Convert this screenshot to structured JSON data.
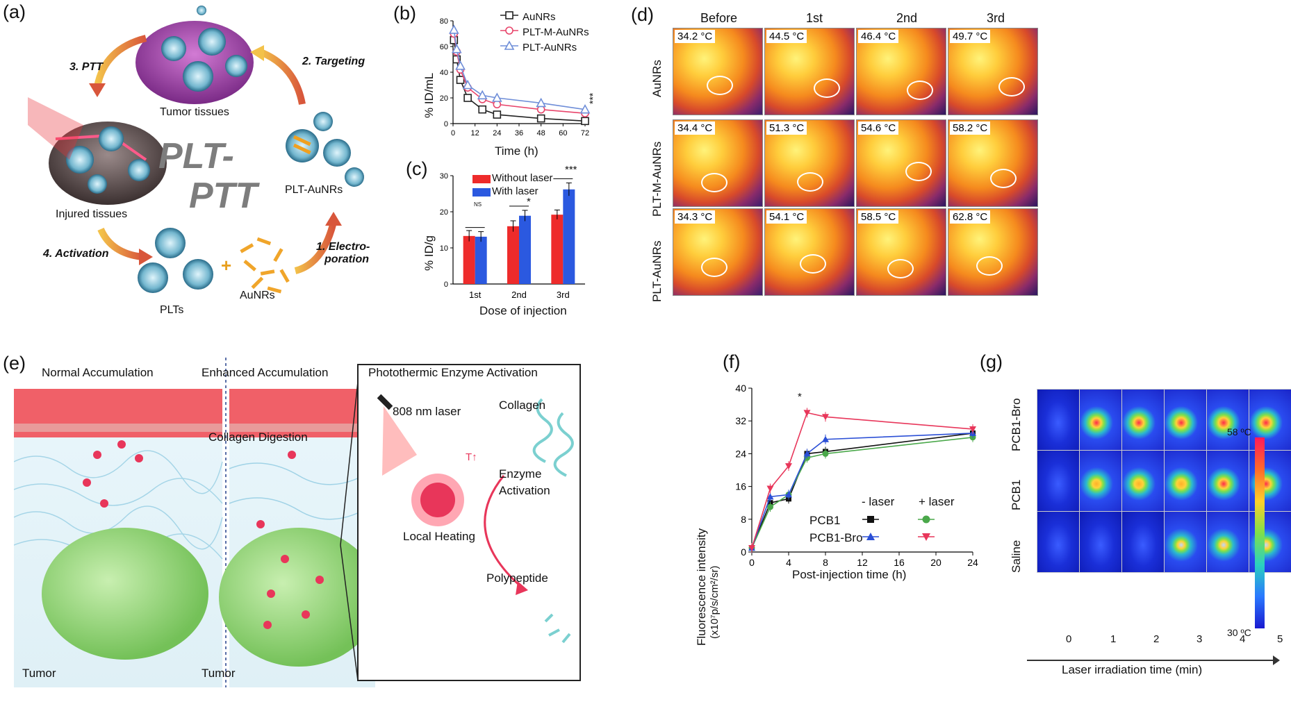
{
  "panels": {
    "a": {
      "letter": "(a)",
      "center_title_1": "PLT-",
      "center_title_2": "PTT",
      "steps": [
        "3. PTT",
        "2. Targeting",
        "4. Activation",
        "1. Electro-",
        "poration"
      ],
      "labels": [
        "Tumor tissues",
        "Injured tissues",
        "PLT-AuNRs",
        "PLTs",
        "AuNRs"
      ],
      "plus": "+"
    },
    "b": {
      "letter": "(b)",
      "ylabel": "% ID/mL",
      "xlabel": "Time (h)",
      "significance": "***",
      "legend": [
        "AuNRs",
        "PLT-M-AuNRs",
        "PLT-AuNRs"
      ]
    },
    "c": {
      "letter": "(c)",
      "ylabel": "% ID/g",
      "xlabel": "Dose of injection",
      "legend": [
        "Without laser",
        "With laser"
      ],
      "sig": [
        "NS",
        "*",
        "***"
      ]
    },
    "d": {
      "letter": "(d)",
      "columns": [
        "Before",
        "1st",
        "2nd",
        "3rd"
      ],
      "rows": [
        {
          "name": "AuNRs",
          "temps": [
            "34.2 °C",
            "44.5 °C",
            "46.4 °C",
            "49.7 °C"
          ]
        },
        {
          "name": "PLT-M-AuNRs",
          "temps": [
            "34.4 °C",
            "51.3 °C",
            "54.6 °C",
            "58.2 °C"
          ]
        },
        {
          "name": "PLT-AuNRs",
          "temps": [
            "34.3 °C",
            "54.1 °C",
            "58.5 °C",
            "62.8 °C"
          ]
        }
      ]
    },
    "e": {
      "letter": "(e)",
      "sections": [
        "Normal Accumulation",
        "Enhanced Accumulation",
        "Photothermic Enzyme Activation"
      ],
      "collagen_digestion": "Collagen Digestion",
      "tumor": "Tumor",
      "laser": "808 nm laser",
      "collagen": "Collagen",
      "t_up": "T↑",
      "enzyme_1": "Enzyme",
      "enzyme_2": "Activation",
      "local_heating": "Local Heating",
      "polypeptide": "Polypeptide"
    },
    "f": {
      "letter": "(f)",
      "ylabel_1": "Fluorescence intensity",
      "ylabel_2": "(x10⁷p/s/cm²/sr)",
      "xlabel": "Post-injection time (h)",
      "legend_head": [
        "- laser",
        "+ laser"
      ],
      "legend_rows": [
        "PCB1",
        "PCB1-Bro"
      ],
      "sig": "*"
    },
    "g": {
      "letter": "(g)",
      "rows": [
        "PCB1-Bro",
        "PCB1",
        "Saline"
      ],
      "cols": [
        "0",
        "1",
        "2",
        "3",
        "4",
        "5"
      ],
      "xlabel": "Laser irradiation time (min)",
      "scale_max": "58 ºC",
      "scale_min": "30 ºC"
    }
  },
  "chart_data": [
    {
      "panel": "b",
      "type": "line",
      "xlabel": "Time (h)",
      "ylabel": "% ID/mL",
      "xlim": [
        0,
        72
      ],
      "ylim": [
        0,
        80
      ],
      "xticks": [
        0,
        12,
        24,
        36,
        48,
        60,
        72
      ],
      "yticks": [
        0,
        20,
        40,
        60,
        80
      ],
      "x": [
        0.5,
        2,
        4,
        8,
        16,
        24,
        48,
        72
      ],
      "series": [
        {
          "name": "AuNRs",
          "color": "#222222",
          "marker": "square",
          "values": [
            65,
            50,
            34,
            20,
            11,
            7,
            4,
            2
          ]
        },
        {
          "name": "PLT-M-AuNRs",
          "color": "#e8456b",
          "marker": "circle",
          "values": [
            70,
            56,
            42,
            28,
            19,
            15,
            11,
            8
          ]
        },
        {
          "name": "PLT-AuNRs",
          "color": "#6f8ed8",
          "marker": "triangle",
          "values": [
            73,
            58,
            45,
            30,
            22,
            20,
            16,
            11
          ]
        }
      ]
    },
    {
      "panel": "c",
      "type": "bar",
      "xlabel": "Dose of injection",
      "ylabel": "% ID/g",
      "categories": [
        "1st",
        "2nd",
        "3rd"
      ],
      "ylim": [
        0,
        30
      ],
      "yticks": [
        0,
        10,
        20,
        30
      ],
      "series": [
        {
          "name": "Without laser",
          "color": "#ee2b2b",
          "values": [
            13.3,
            16.0,
            19.2
          ],
          "errors": [
            1.5,
            1.5,
            1.3
          ]
        },
        {
          "name": "With laser",
          "color": "#2b59e0",
          "values": [
            13.1,
            18.9,
            26.2
          ],
          "errors": [
            1.4,
            1.5,
            1.8
          ]
        }
      ]
    },
    {
      "panel": "f",
      "type": "line",
      "xlabel": "Post-injection time (h)",
      "ylabel": "Fluorescence intensity",
      "xlim": [
        0,
        24
      ],
      "ylim": [
        0,
        40
      ],
      "xticks": [
        0,
        4,
        8,
        12,
        16,
        20,
        24
      ],
      "yticks": [
        0,
        8,
        16,
        24,
        32,
        40
      ],
      "x": [
        0,
        2,
        4,
        6,
        8,
        24
      ],
      "series": [
        {
          "name": "PCB1 - laser",
          "color": "#111111",
          "marker": "square",
          "values": [
            1,
            12,
            13,
            24,
            24.5,
            29
          ]
        },
        {
          "name": "PCB1 + laser",
          "color": "#4aa84a",
          "marker": "circle",
          "values": [
            1,
            11,
            14,
            23,
            24,
            28
          ]
        },
        {
          "name": "PCB1-Bro - laser",
          "color": "#2b4fd6",
          "marker": "triangle",
          "values": [
            1,
            13.5,
            14,
            24,
            27.5,
            29
          ]
        },
        {
          "name": "PCB1-Bro + laser",
          "color": "#e8365a",
          "marker": "triangle-down",
          "values": [
            1,
            15.5,
            21,
            34,
            33,
            30
          ]
        }
      ]
    }
  ]
}
